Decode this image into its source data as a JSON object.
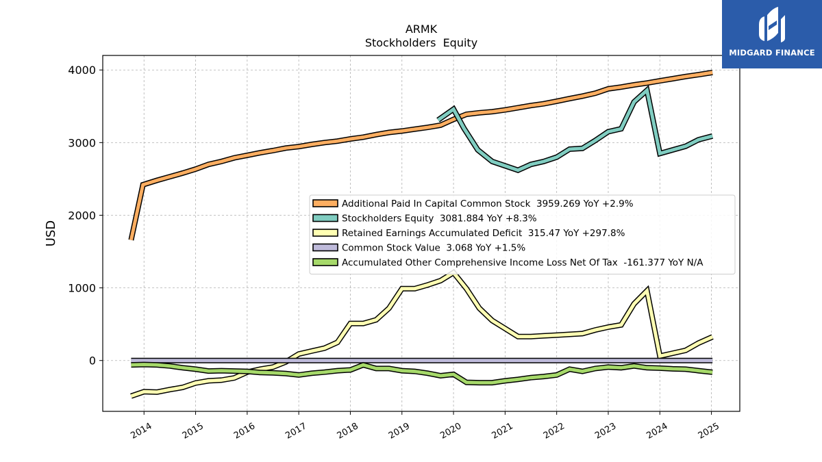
{
  "brand": {
    "name": "MIDGARD FINANCE",
    "logo_icon": "midgard-logo-icon",
    "color": "#2b5caa"
  },
  "chart_data": {
    "type": "line",
    "title": "ARMK",
    "subtitle": "Stockholders  Equity",
    "ylabel": "USD",
    "xlabel": "",
    "x_ticks": [
      "2014",
      "2015",
      "2016",
      "2017",
      "2018",
      "2019",
      "2020",
      "2021",
      "2022",
      "2023",
      "2024",
      "2025"
    ],
    "y_ticks": [
      0,
      1000,
      2000,
      3000,
      4000
    ],
    "xlim": [
      2013.2,
      2025.55
    ],
    "ylim": [
      -700,
      4200
    ],
    "grid": true,
    "legend_position": "center-right",
    "series": [
      {
        "name": "Additional Paid In Capital Common Stock",
        "legend": "Additional Paid In Capital Common Stock  3959.269 YoY +2.9%",
        "color": "#fdae61",
        "points": [
          [
            2013.75,
            1660
          ],
          [
            2013.98,
            2420
          ],
          [
            2014.25,
            2480
          ],
          [
            2014.5,
            2530
          ],
          [
            2014.75,
            2580
          ],
          [
            2015.0,
            2635
          ],
          [
            2015.25,
            2700
          ],
          [
            2015.5,
            2740
          ],
          [
            2015.75,
            2790
          ],
          [
            2016.0,
            2825
          ],
          [
            2016.25,
            2860
          ],
          [
            2016.5,
            2890
          ],
          [
            2016.75,
            2925
          ],
          [
            2017.0,
            2945
          ],
          [
            2017.25,
            2975
          ],
          [
            2017.5,
            3000
          ],
          [
            2017.75,
            3020
          ],
          [
            2018.0,
            3050
          ],
          [
            2018.25,
            3075
          ],
          [
            2018.5,
            3110
          ],
          [
            2018.75,
            3140
          ],
          [
            2019.0,
            3160
          ],
          [
            2019.25,
            3185
          ],
          [
            2019.5,
            3210
          ],
          [
            2019.75,
            3240
          ],
          [
            2020.0,
            3320
          ],
          [
            2020.25,
            3390
          ],
          [
            2020.5,
            3410
          ],
          [
            2020.75,
            3425
          ],
          [
            2021.0,
            3450
          ],
          [
            2021.25,
            3480
          ],
          [
            2021.5,
            3510
          ],
          [
            2021.75,
            3535
          ],
          [
            2022.0,
            3570
          ],
          [
            2022.25,
            3605
          ],
          [
            2022.5,
            3640
          ],
          [
            2022.75,
            3680
          ],
          [
            2023.0,
            3740
          ],
          [
            2023.25,
            3765
          ],
          [
            2023.5,
            3795
          ],
          [
            2023.75,
            3820
          ],
          [
            2024.0,
            3850
          ],
          [
            2024.25,
            3880
          ],
          [
            2024.5,
            3910
          ],
          [
            2024.75,
            3935
          ],
          [
            2025.02,
            3965
          ]
        ]
      },
      {
        "name": "Stockholders Equity",
        "legend": "Stockholders Equity  3081.884 YoY +8.3%",
        "color": "#80cdc1",
        "points": [
          [
            2019.7,
            3310
          ],
          [
            2020.0,
            3460
          ],
          [
            2020.2,
            3200
          ],
          [
            2020.47,
            2900
          ],
          [
            2020.75,
            2740
          ],
          [
            2021.0,
            2680
          ],
          [
            2021.25,
            2620
          ],
          [
            2021.5,
            2700
          ],
          [
            2021.75,
            2740
          ],
          [
            2022.0,
            2800
          ],
          [
            2022.25,
            2910
          ],
          [
            2022.5,
            2920
          ],
          [
            2022.75,
            3030
          ],
          [
            2023.0,
            3150
          ],
          [
            2023.25,
            3190
          ],
          [
            2023.5,
            3560
          ],
          [
            2023.75,
            3720
          ],
          [
            2024.0,
            2850
          ],
          [
            2024.25,
            2900
          ],
          [
            2024.5,
            2950
          ],
          [
            2024.75,
            3040
          ],
          [
            2025.02,
            3090
          ]
        ]
      },
      {
        "name": "Retained Earnings Accumulated Deficit",
        "legend": "Retained Earnings Accumulated Deficit  315.47 YoY +297.8%",
        "color": "#ffffb3",
        "points": [
          [
            2013.75,
            -490
          ],
          [
            2014.0,
            -430
          ],
          [
            2014.25,
            -435
          ],
          [
            2014.5,
            -400
          ],
          [
            2014.75,
            -370
          ],
          [
            2015.0,
            -310
          ],
          [
            2015.25,
            -280
          ],
          [
            2015.5,
            -270
          ],
          [
            2015.75,
            -240
          ],
          [
            2016.0,
            -160
          ],
          [
            2016.25,
            -120
          ],
          [
            2016.5,
            -90
          ],
          [
            2016.75,
            -20
          ],
          [
            2017.0,
            90
          ],
          [
            2017.25,
            130
          ],
          [
            2017.5,
            170
          ],
          [
            2017.75,
            250
          ],
          [
            2018.0,
            510
          ],
          [
            2018.25,
            510
          ],
          [
            2018.5,
            560
          ],
          [
            2018.75,
            720
          ],
          [
            2019.0,
            990
          ],
          [
            2019.25,
            990
          ],
          [
            2019.5,
            1040
          ],
          [
            2019.75,
            1100
          ],
          [
            2020.0,
            1210
          ],
          [
            2020.25,
            990
          ],
          [
            2020.5,
            720
          ],
          [
            2020.75,
            550
          ],
          [
            2021.0,
            440
          ],
          [
            2021.25,
            330
          ],
          [
            2021.5,
            330
          ],
          [
            2021.75,
            340
          ],
          [
            2022.0,
            350
          ],
          [
            2022.25,
            360
          ],
          [
            2022.5,
            370
          ],
          [
            2022.75,
            420
          ],
          [
            2023.0,
            460
          ],
          [
            2023.25,
            490
          ],
          [
            2023.5,
            780
          ],
          [
            2023.75,
            960
          ],
          [
            2024.0,
            60
          ],
          [
            2024.25,
            100
          ],
          [
            2024.5,
            140
          ],
          [
            2024.75,
            240
          ],
          [
            2025.02,
            325
          ]
        ]
      },
      {
        "name": "Common Stock Value",
        "legend": "Common Stock Value  3.068 YoY +1.5%",
        "color": "#bebada",
        "points": [
          [
            2013.75,
            0
          ],
          [
            2025.02,
            0
          ]
        ]
      },
      {
        "name": "Accumulated Other Comprehensive Income Loss Net Of Tax",
        "legend": "Accumulated Other Comprehensive Income Loss Net Of Tax  -161.377 YoY N/A",
        "color": "#a6d96a",
        "points": [
          [
            2013.75,
            -60
          ],
          [
            2014.0,
            -55
          ],
          [
            2014.25,
            -60
          ],
          [
            2014.5,
            -75
          ],
          [
            2014.75,
            -100
          ],
          [
            2015.0,
            -120
          ],
          [
            2015.25,
            -145
          ],
          [
            2015.5,
            -140
          ],
          [
            2015.75,
            -145
          ],
          [
            2016.0,
            -150
          ],
          [
            2016.25,
            -165
          ],
          [
            2016.5,
            -170
          ],
          [
            2016.75,
            -180
          ],
          [
            2017.0,
            -200
          ],
          [
            2017.25,
            -175
          ],
          [
            2017.5,
            -160
          ],
          [
            2017.75,
            -140
          ],
          [
            2018.0,
            -130
          ],
          [
            2018.25,
            -60
          ],
          [
            2018.5,
            -110
          ],
          [
            2018.75,
            -110
          ],
          [
            2019.0,
            -140
          ],
          [
            2019.25,
            -150
          ],
          [
            2019.5,
            -175
          ],
          [
            2019.75,
            -210
          ],
          [
            2020.0,
            -190
          ],
          [
            2020.25,
            -300
          ],
          [
            2020.5,
            -305
          ],
          [
            2020.75,
            -305
          ],
          [
            2021.0,
            -280
          ],
          [
            2021.25,
            -260
          ],
          [
            2021.5,
            -235
          ],
          [
            2021.75,
            -220
          ],
          [
            2022.0,
            -200
          ],
          [
            2022.25,
            -120
          ],
          [
            2022.5,
            -150
          ],
          [
            2022.75,
            -110
          ],
          [
            2023.0,
            -90
          ],
          [
            2023.25,
            -100
          ],
          [
            2023.5,
            -75
          ],
          [
            2023.75,
            -100
          ],
          [
            2024.0,
            -105
          ],
          [
            2024.25,
            -115
          ],
          [
            2024.5,
            -120
          ],
          [
            2024.75,
            -140
          ],
          [
            2025.02,
            -161
          ]
        ]
      }
    ]
  }
}
